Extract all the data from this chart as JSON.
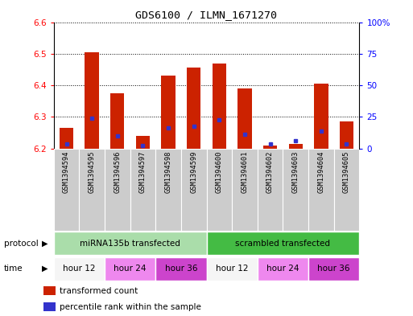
{
  "title": "GDS6100 / ILMN_1671270",
  "samples": [
    "GSM1394594",
    "GSM1394595",
    "GSM1394596",
    "GSM1394597",
    "GSM1394598",
    "GSM1394599",
    "GSM1394600",
    "GSM1394601",
    "GSM1394602",
    "GSM1394603",
    "GSM1394604",
    "GSM1394605"
  ],
  "bar_values": [
    6.265,
    6.505,
    6.375,
    6.24,
    6.43,
    6.455,
    6.47,
    6.39,
    6.21,
    6.215,
    6.405,
    6.285
  ],
  "blue_values": [
    6.215,
    6.295,
    6.24,
    6.21,
    6.265,
    6.27,
    6.29,
    6.245,
    6.215,
    6.225,
    6.255,
    6.215
  ],
  "ylim_left": [
    6.2,
    6.6
  ],
  "ylim_right": [
    0,
    100
  ],
  "yticks_left": [
    6.2,
    6.3,
    6.4,
    6.5,
    6.6
  ],
  "yticks_right": [
    0,
    25,
    50,
    75,
    100
  ],
  "ytick_labels_right": [
    "0",
    "25",
    "50",
    "75",
    "100%"
  ],
  "bar_color": "#cc2200",
  "blue_color": "#3333cc",
  "bar_width": 0.55,
  "protocol_groups": [
    {
      "label": "miRNA135b transfected",
      "start": 0,
      "end": 6,
      "color": "#aaddaa"
    },
    {
      "label": "scrambled transfected",
      "start": 6,
      "end": 12,
      "color": "#44bb44"
    }
  ],
  "time_groups": [
    {
      "label": "hour 12",
      "start": 0,
      "end": 2,
      "color": "#f5f5f5"
    },
    {
      "label": "hour 24",
      "start": 2,
      "end": 4,
      "color": "#ee88ee"
    },
    {
      "label": "hour 36",
      "start": 4,
      "end": 6,
      "color": "#cc44cc"
    },
    {
      "label": "hour 12",
      "start": 6,
      "end": 8,
      "color": "#f5f5f5"
    },
    {
      "label": "hour 24",
      "start": 8,
      "end": 10,
      "color": "#ee88ee"
    },
    {
      "label": "hour 36",
      "start": 10,
      "end": 12,
      "color": "#cc44cc"
    }
  ],
  "legend_items": [
    {
      "label": "transformed count",
      "color": "#cc2200"
    },
    {
      "label": "percentile rank within the sample",
      "color": "#3333cc"
    }
  ],
  "xlabel_protocol": "protocol",
  "xlabel_time": "time",
  "bg_color": "#ffffff",
  "plot_bg_color": "#ffffff",
  "xticklabel_bg": "#cccccc",
  "figsize": [
    5.13,
    3.93
  ],
  "dpi": 100
}
